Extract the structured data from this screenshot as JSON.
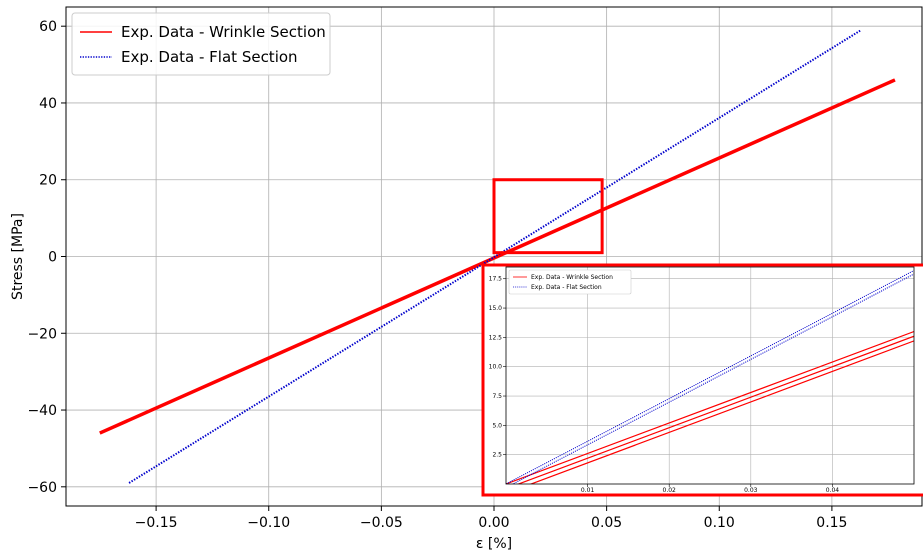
{
  "chart_data": [
    {
      "type": "line",
      "title": "",
      "xlabel": "ε [%]",
      "ylabel": "Stress [MPa]",
      "xlim": [
        -0.19,
        0.19
      ],
      "ylim": [
        -65,
        65
      ],
      "xticks": [
        -0.15,
        -0.1,
        -0.05,
        0.0,
        0.05,
        0.1,
        0.15
      ],
      "xtick_labels": [
        "−0.15",
        "−0.10",
        "−0.05",
        "0.00",
        "0.05",
        "0.10",
        "0.15"
      ],
      "yticks": [
        -60,
        -40,
        -20,
        0,
        20,
        40,
        60
      ],
      "ytick_labels": [
        "−60",
        "−40",
        "−20",
        "0",
        "20",
        "40",
        "60"
      ],
      "grid": true,
      "legend_position": "top-left",
      "series": [
        {
          "name": "Exp. Data - Wrinkle Section",
          "color": "#ff0000",
          "style": "solid",
          "x": [
            -0.175,
            0.178
          ],
          "y": [
            -46,
            46
          ]
        },
        {
          "name": "Exp. Data - Flat Section",
          "color": "#0000cc",
          "style": "dotted",
          "x": [
            -0.162,
            0.163
          ],
          "y": [
            -59,
            59
          ]
        }
      ],
      "zoom_box": {
        "x": [
          0.0,
          0.048
        ],
        "y": [
          1,
          20
        ],
        "color": "#ff0000"
      }
    },
    {
      "type": "line",
      "title": "",
      "role": "inset zoom",
      "xlim": [
        0.0,
        0.05
      ],
      "ylim": [
        0.0,
        18.5
      ],
      "xticks": [
        0.01,
        0.02,
        0.03,
        0.04
      ],
      "xtick_labels": [
        "0.01",
        "0.02",
        "0.03",
        "0.04"
      ],
      "yticks": [
        2.5,
        5.0,
        7.5,
        10.0,
        12.5,
        15.0,
        17.5
      ],
      "ytick_labels": [
        "2.5",
        "5.0",
        "7.5",
        "10.0",
        "12.5",
        "15.0",
        "17.5"
      ],
      "grid": true,
      "legend_position": "top-left",
      "series": [
        {
          "name": "Exp. Data - Wrinkle Section",
          "color": "#ff0000",
          "style": "solid",
          "x": [
            0.0,
            0.05
          ],
          "y": [
            0.0,
            13.0
          ]
        },
        {
          "name": "Exp. Data - Wrinkle Section",
          "color": "#ff0000",
          "style": "solid",
          "x": [
            0.0,
            0.05
          ],
          "y": [
            -0.4,
            12.6
          ]
        },
        {
          "name": "Exp. Data - Wrinkle Section",
          "color": "#ff0000",
          "style": "solid",
          "x": [
            0.0,
            0.05
          ],
          "y": [
            -0.8,
            12.2
          ]
        },
        {
          "name": "Exp. Data - Flat Section",
          "color": "#0000cc",
          "style": "dotted",
          "x": [
            0.0,
            0.05
          ],
          "y": [
            0.0,
            18.2
          ]
        },
        {
          "name": "Exp. Data - Flat Section",
          "color": "#0000cc",
          "style": "dotted",
          "x": [
            0.0,
            0.05
          ],
          "y": [
            -0.3,
            17.9
          ]
        }
      ]
    }
  ]
}
